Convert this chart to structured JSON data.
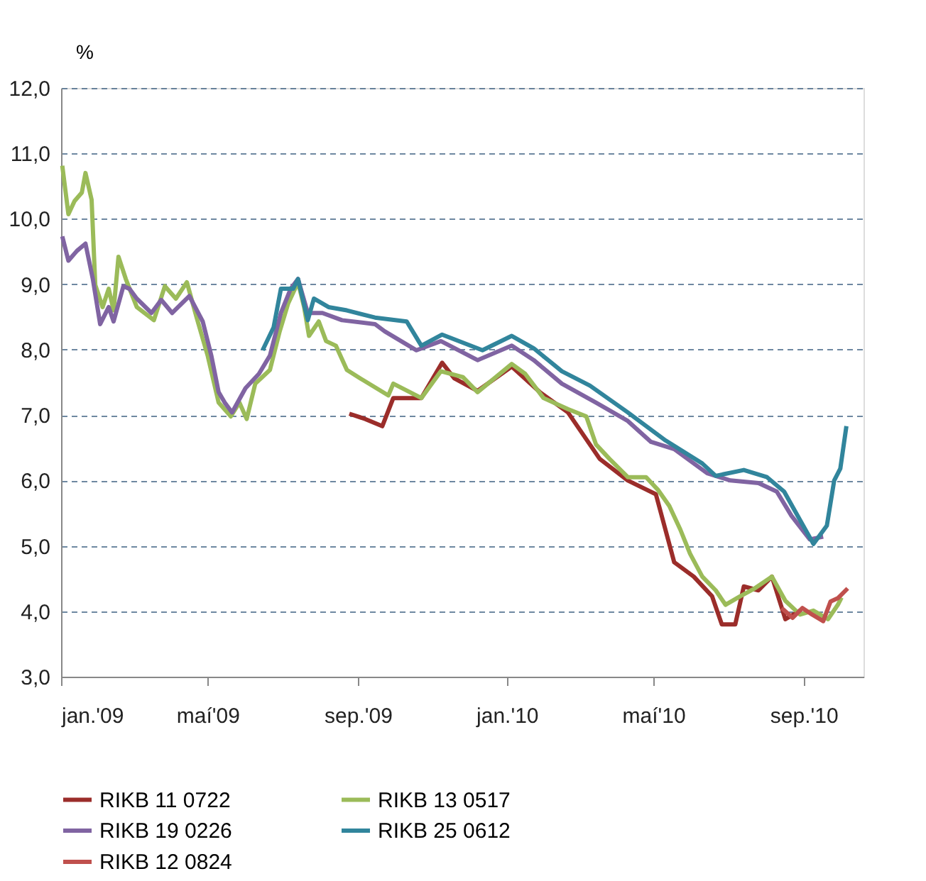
{
  "chart_data": {
    "type": "line",
    "ylabel": "%",
    "xlim": [
      "2009-01-01",
      "2010-10-20"
    ],
    "xticks": [
      {
        "value": "2009-01-01",
        "label": "jan.'09"
      },
      {
        "value": "2009-05-01",
        "label": "maí'09"
      },
      {
        "value": "2009-09-01",
        "label": "sep.'09"
      },
      {
        "value": "2010-01-01",
        "label": "jan.'10"
      },
      {
        "value": "2010-05-01",
        "label": "maí'10"
      },
      {
        "value": "2010-09-01",
        "label": "sep.'10"
      }
    ],
    "ylim": [
      3,
      12
    ],
    "yticks": [
      {
        "value": 3,
        "label": "3,0"
      },
      {
        "value": 4,
        "label": "4,0"
      },
      {
        "value": 5,
        "label": "5,0"
      },
      {
        "value": 6,
        "label": "6,0"
      },
      {
        "value": 7,
        "label": "7,0"
      },
      {
        "value": 8,
        "label": "8,0"
      },
      {
        "value": 9,
        "label": "9,0"
      },
      {
        "value": 10,
        "label": "10,0"
      },
      {
        "value": 11,
        "label": "11,0"
      },
      {
        "value": 12,
        "label": "12,0"
      }
    ],
    "grid": "y",
    "legend": "bottom",
    "line_style": "solid",
    "marker": "none",
    "series": [
      {
        "name": "RIKB 11 0722",
        "color": "#9b2d2a",
        "x": [
          "2009-08-25",
          "2009-09-07",
          "2009-09-21",
          "2009-09-30",
          "2009-10-19",
          "2009-10-23",
          "2009-11-09",
          "2009-11-19",
          "2009-12-08",
          "2010-01-05",
          "2010-01-28",
          "2010-02-20",
          "2010-03-18",
          "2010-04-10",
          "2010-05-03",
          "2010-05-18",
          "2010-06-03",
          "2010-06-18",
          "2010-06-26",
          "2010-07-07",
          "2010-07-14",
          "2010-07-26",
          "2010-08-06",
          "2010-08-17",
          "2010-08-29"
        ],
        "values": [
          7.02,
          6.94,
          6.83,
          7.26,
          7.26,
          7.26,
          7.8,
          7.56,
          7.37,
          7.74,
          7.35,
          7.04,
          6.33,
          6.0,
          5.79,
          4.75,
          4.53,
          4.23,
          3.8,
          3.8,
          4.38,
          4.32,
          4.53,
          3.88,
          4.01
        ]
      },
      {
        "name": "RIKB 13 0517",
        "color": "#9bbb59",
        "x": [
          "2009-01-02",
          "2009-01-07",
          "2009-01-12",
          "2009-01-18",
          "2009-01-21",
          "2009-01-26",
          "2009-01-29",
          "2009-02-04",
          "2009-02-09",
          "2009-02-13",
          "2009-02-17",
          "2009-02-23",
          "2009-03-04",
          "2009-03-18",
          "2009-03-27",
          "2009-04-05",
          "2009-04-14",
          "2009-04-22",
          "2009-05-01",
          "2009-05-10",
          "2009-05-20",
          "2009-05-27",
          "2009-06-02",
          "2009-06-09",
          "2009-06-21",
          "2009-06-29",
          "2009-07-06",
          "2009-07-14",
          "2009-07-19",
          "2009-07-23",
          "2009-07-31",
          "2009-08-06",
          "2009-08-14",
          "2009-08-23",
          "2009-09-03",
          "2009-09-26",
          "2009-09-30",
          "2009-10-23",
          "2009-11-08",
          "2009-11-26",
          "2009-12-08",
          "2010-01-05",
          "2010-01-16",
          "2010-01-31",
          "2010-02-20",
          "2010-03-07",
          "2010-03-15",
          "2010-03-26",
          "2010-04-10",
          "2010-04-25",
          "2010-05-05",
          "2010-05-14",
          "2010-05-23",
          "2010-05-31",
          "2010-06-10",
          "2010-06-21",
          "2010-06-29",
          "2010-07-11",
          "2010-07-22",
          "2010-08-06",
          "2010-08-17",
          "2010-08-29",
          "2010-09-09",
          "2010-09-21",
          "2010-09-29",
          "2010-10-02"
        ],
        "values": [
          10.81,
          10.07,
          10.27,
          10.4,
          10.7,
          10.29,
          8.99,
          8.65,
          8.93,
          8.6,
          9.42,
          9.08,
          8.65,
          8.45,
          8.97,
          8.78,
          9.03,
          8.49,
          7.91,
          7.19,
          6.98,
          7.19,
          6.94,
          7.48,
          7.69,
          8.28,
          8.71,
          9.03,
          8.65,
          8.21,
          8.43,
          8.13,
          8.06,
          7.69,
          7.56,
          7.3,
          7.48,
          7.26,
          7.67,
          7.58,
          7.35,
          7.78,
          7.63,
          7.26,
          7.09,
          6.98,
          6.55,
          6.33,
          6.05,
          6.05,
          5.85,
          5.61,
          5.25,
          4.88,
          4.53,
          4.32,
          4.1,
          4.23,
          4.34,
          4.53,
          4.16,
          3.95,
          4.01,
          3.88,
          4.1,
          4.21
        ]
      },
      {
        "name": "RIKB 19 0226",
        "color": "#8064a2",
        "x": [
          "2009-01-02",
          "2009-01-07",
          "2009-01-14",
          "2009-01-21",
          "2009-01-27",
          "2009-02-02",
          "2009-02-09",
          "2009-02-13",
          "2009-02-21",
          "2009-02-26",
          "2009-03-04",
          "2009-03-16",
          "2009-03-24",
          "2009-04-02",
          "2009-04-16",
          "2009-04-27",
          "2009-05-04",
          "2009-05-10",
          "2009-05-15",
          "2009-05-21",
          "2009-06-01",
          "2009-06-12",
          "2009-06-21",
          "2009-06-30",
          "2009-07-08",
          "2009-07-14",
          "2009-07-22",
          "2009-08-03",
          "2009-08-19",
          "2009-09-15",
          "2009-09-23",
          "2009-10-19",
          "2009-11-08",
          "2009-12-08",
          "2010-01-05",
          "2010-01-23",
          "2010-02-15",
          "2010-03-15",
          "2010-04-10",
          "2010-04-29",
          "2010-05-18",
          "2010-06-14",
          "2010-07-03",
          "2010-07-26",
          "2010-08-10",
          "2010-08-22",
          "2010-09-06",
          "2010-09-17"
        ],
        "values": [
          9.73,
          9.36,
          9.51,
          9.62,
          9.08,
          8.39,
          8.65,
          8.43,
          8.97,
          8.93,
          8.78,
          8.56,
          8.76,
          8.56,
          8.82,
          8.43,
          7.91,
          7.35,
          7.19,
          7.04,
          7.41,
          7.63,
          7.91,
          8.56,
          8.93,
          9.08,
          8.56,
          8.56,
          8.45,
          8.39,
          8.28,
          7.99,
          8.13,
          7.84,
          8.06,
          7.84,
          7.48,
          7.19,
          6.91,
          6.59,
          6.48,
          6.11,
          6.0,
          5.96,
          5.83,
          5.46,
          5.1,
          5.14
        ]
      },
      {
        "name": "RIKB 25 0612",
        "color": "#31859c",
        "x": [
          "2009-06-15",
          "2009-06-24",
          "2009-06-30",
          "2009-07-10",
          "2009-07-14",
          "2009-07-22",
          "2009-07-27",
          "2009-08-08",
          "2009-08-23",
          "2009-09-15",
          "2009-10-11",
          "2009-10-23",
          "2009-11-09",
          "2009-12-12",
          "2010-01-05",
          "2010-01-23",
          "2010-02-15",
          "2010-03-10",
          "2010-04-10",
          "2010-05-11",
          "2010-06-10",
          "2010-06-21",
          "2010-07-14",
          "2010-08-02",
          "2010-08-16",
          "2010-08-25",
          "2010-09-09",
          "2010-09-20",
          "2010-09-26",
          "2010-10-01",
          "2010-10-06"
        ],
        "values": [
          7.99,
          8.34,
          8.93,
          8.93,
          9.08,
          8.45,
          8.78,
          8.65,
          8.6,
          8.49,
          8.43,
          8.06,
          8.23,
          7.99,
          8.21,
          8.02,
          7.67,
          7.45,
          7.04,
          6.61,
          6.26,
          6.07,
          6.16,
          6.05,
          5.83,
          5.53,
          5.03,
          5.31,
          6.0,
          6.18,
          6.83
        ]
      },
      {
        "name": "RIKB 12 0824",
        "color": "#c0504d",
        "x": [
          "2010-08-14",
          "2010-08-23",
          "2010-08-31",
          "2010-09-08",
          "2010-09-17",
          "2010-09-23",
          "2010-09-29",
          "2010-10-07"
        ],
        "values": [
          4.05,
          3.9,
          4.05,
          3.95,
          3.85,
          4.15,
          4.2,
          4.35
        ]
      }
    ]
  }
}
